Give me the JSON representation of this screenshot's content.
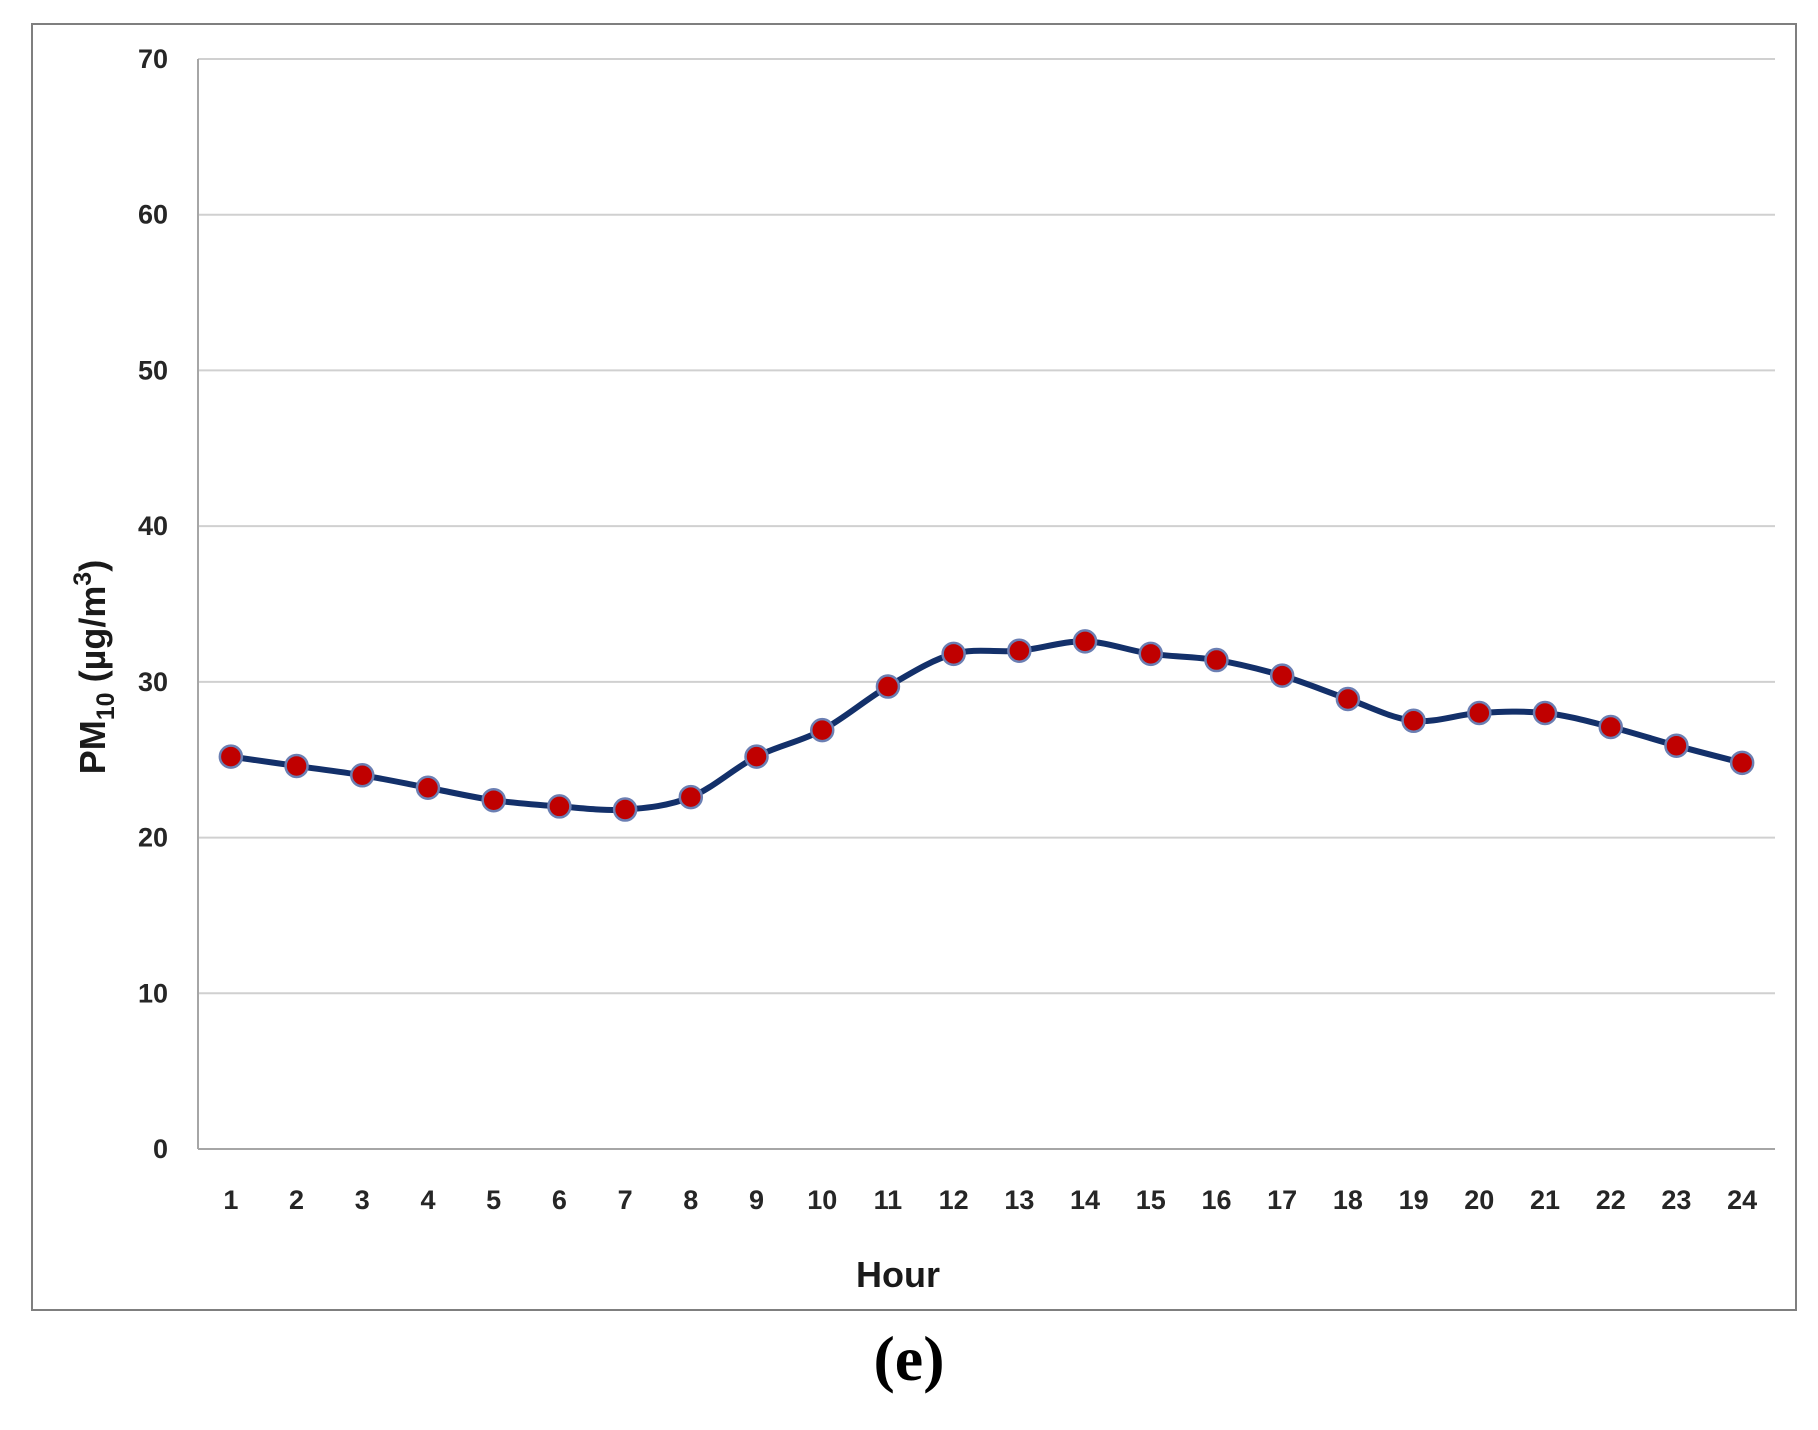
{
  "panel_label": "(e)",
  "colors": {
    "line": "#13306a",
    "marker_fill": "#c00000",
    "marker_edge": "#6b7fb3",
    "grid": "#d0d0d0",
    "axis": "#a6a6a6",
    "frame": "#7f7f7f"
  },
  "chart_data": {
    "type": "line",
    "title": "",
    "xlabel": "Hour",
    "ylabel": {
      "prefix": "PM",
      "sub": "10",
      "unit_open": " (µg/m",
      "sup": "3",
      "unit_close": ")"
    },
    "ylim": [
      0,
      70
    ],
    "yticks": [
      0,
      10,
      20,
      30,
      40,
      50,
      60,
      70
    ],
    "grid": true,
    "legend": "none",
    "categories": [
      "1",
      "2",
      "3",
      "4",
      "5",
      "6",
      "7",
      "8",
      "9",
      "10",
      "11",
      "12",
      "13",
      "14",
      "15",
      "16",
      "17",
      "18",
      "19",
      "20",
      "21",
      "22",
      "23",
      "24"
    ],
    "series": [
      {
        "values": [
          25.2,
          24.6,
          24.0,
          23.2,
          22.4,
          22.0,
          21.8,
          22.6,
          25.2,
          26.9,
          29.7,
          31.8,
          32.0,
          32.6,
          31.8,
          31.4,
          30.4,
          28.9,
          27.5,
          28.0,
          28.0,
          27.1,
          25.9,
          24.8
        ]
      }
    ]
  }
}
